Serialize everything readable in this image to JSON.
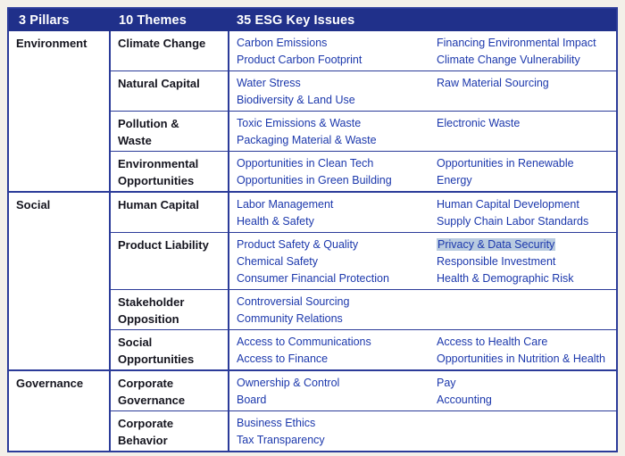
{
  "colors": {
    "page_bg": "#F3F0E9",
    "header_bg": "#20308A",
    "border": "#2B3B99",
    "issue_text": "#1C38AC",
    "dark_text": "#15151F",
    "cell_bg": "#FFFFFF",
    "highlight_bg": "#B9CBE0",
    "header_text": "#FFFFFF"
  },
  "header": {
    "pillars": "3 Pillars",
    "themes": "10 Themes",
    "issues": "35 ESG Key Issues"
  },
  "highlighted_issue": "Privacy & Data Security",
  "pillars": [
    {
      "name": "Environment",
      "themes": [
        {
          "name": "Climate Change",
          "issues_left": [
            "Carbon Emissions",
            "Product Carbon Footprint"
          ],
          "issues_right": [
            "Financing Environmental Impact",
            "Climate Change Vulnerability"
          ]
        },
        {
          "name": "Natural Capital",
          "issues_left": [
            "Water Stress",
            "Biodiversity & Land Use"
          ],
          "issues_right": [
            "Raw Material Sourcing"
          ]
        },
        {
          "name": "Pollution & Waste",
          "issues_left": [
            "Toxic Emissions & Waste",
            "Packaging Material & Waste"
          ],
          "issues_right": [
            "Electronic Waste"
          ]
        },
        {
          "name": "Environmental Opportunities",
          "issues_left": [
            "Opportunities in Clean Tech",
            "Opportunities in Green Building"
          ],
          "issues_right": [
            "Opportunities in Renewable Energy"
          ]
        }
      ]
    },
    {
      "name": "Social",
      "themes": [
        {
          "name": "Human Capital",
          "issues_left": [
            "Labor Management",
            "Health & Safety"
          ],
          "issues_right": [
            "Human Capital Development",
            "Supply Chain Labor Standards"
          ]
        },
        {
          "name": "Product Liability",
          "issues_left": [
            "Product Safety & Quality",
            "Chemical Safety",
            "Consumer Financial Protection"
          ],
          "issues_right": [
            "Privacy & Data Security",
            "Responsible Investment",
            "Health & Demographic Risk"
          ]
        },
        {
          "name": "Stakeholder Opposition",
          "issues_left": [
            "Controversial Sourcing",
            "Community Relations"
          ],
          "issues_right": []
        },
        {
          "name": "Social Opportunities",
          "issues_left": [
            "Access to Communications",
            "Access to Finance"
          ],
          "issues_right": [
            "Access to Health Care",
            "Opportunities in Nutrition & Health"
          ]
        }
      ]
    },
    {
      "name": "Governance",
      "themes": [
        {
          "name": "Corporate Governance",
          "issues_left": [
            "Ownership & Control",
            "Board"
          ],
          "issues_right": [
            "Pay",
            "Accounting"
          ]
        },
        {
          "name": "Corporate Behavior",
          "issues_left": [
            "Business Ethics",
            "Tax Transparency"
          ],
          "issues_right": []
        }
      ]
    }
  ]
}
